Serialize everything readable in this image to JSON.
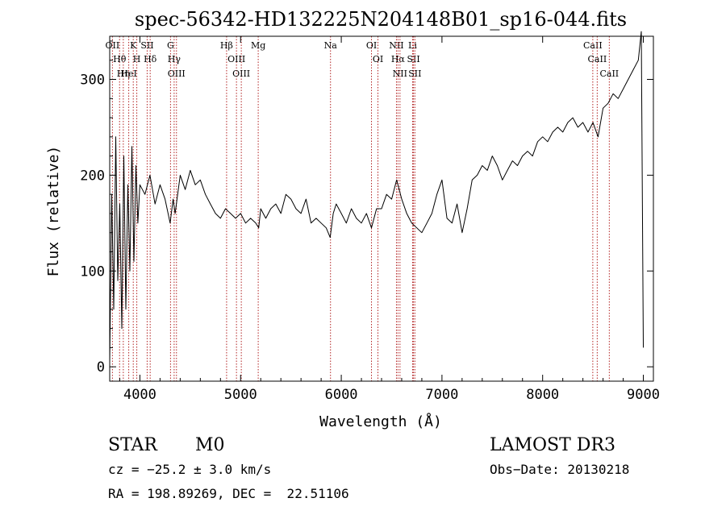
{
  "chart_data": {
    "type": "line",
    "title": "spec-56342-HD132225N204148B01_sp16-044.fits",
    "xlabel": "Wavelength (Å)",
    "ylabel": "Flux (relative)",
    "xlim": [
      3700,
      9100
    ],
    "ylim": [
      -15,
      345
    ],
    "x_ticks": [
      4000,
      5000,
      6000,
      7000,
      8000,
      9000
    ],
    "x_tick_labels": [
      "4000",
      "5000",
      "6000",
      "7000",
      "8000",
      "9000"
    ],
    "y_ticks": [
      0,
      100,
      200,
      300
    ],
    "y_tick_labels": [
      "0",
      "100",
      "200",
      "300"
    ],
    "series": [
      {
        "name": "flux",
        "x": [
          3700,
          3720,
          3740,
          3760,
          3780,
          3800,
          3820,
          3840,
          3860,
          3880,
          3900,
          3920,
          3940,
          3960,
          3980,
          4000,
          4050,
          4100,
          4150,
          4200,
          4250,
          4300,
          4330,
          4350,
          4400,
          4450,
          4500,
          4550,
          4600,
          4650,
          4700,
          4750,
          4800,
          4850,
          4900,
          4950,
          5000,
          5050,
          5100,
          5150,
          5180,
          5200,
          5250,
          5300,
          5350,
          5400,
          5450,
          5500,
          5550,
          5600,
          5650,
          5700,
          5750,
          5800,
          5850,
          5890,
          5920,
          5950,
          6000,
          6050,
          6100,
          6150,
          6200,
          6250,
          6300,
          6350,
          6400,
          6450,
          6500,
          6550,
          6563,
          6600,
          6650,
          6700,
          6750,
          6800,
          6850,
          6900,
          6950,
          7000,
          7050,
          7100,
          7150,
          7200,
          7250,
          7300,
          7350,
          7400,
          7450,
          7500,
          7550,
          7600,
          7650,
          7700,
          7750,
          7800,
          7850,
          7900,
          7950,
          8000,
          8050,
          8100,
          8150,
          8200,
          8250,
          8300,
          8350,
          8400,
          8450,
          8500,
          8550,
          8600,
          8650,
          8700,
          8750,
          8800,
          8850,
          8900,
          8950,
          8980,
          9000
        ],
        "y": [
          5,
          180,
          60,
          240,
          90,
          170,
          40,
          220,
          60,
          190,
          100,
          230,
          110,
          210,
          150,
          190,
          180,
          200,
          170,
          190,
          175,
          150,
          175,
          160,
          200,
          185,
          205,
          190,
          195,
          180,
          170,
          160,
          155,
          165,
          160,
          155,
          160,
          150,
          155,
          150,
          145,
          165,
          155,
          165,
          170,
          160,
          180,
          175,
          165,
          160,
          175,
          150,
          155,
          150,
          145,
          135,
          160,
          170,
          160,
          150,
          165,
          155,
          150,
          160,
          145,
          165,
          165,
          180,
          175,
          195,
          190,
          175,
          160,
          150,
          145,
          140,
          150,
          160,
          180,
          195,
          155,
          150,
          170,
          140,
          165,
          195,
          200,
          210,
          205,
          220,
          210,
          195,
          205,
          215,
          210,
          220,
          225,
          220,
          235,
          240,
          235,
          245,
          250,
          245,
          255,
          260,
          250,
          255,
          245,
          255,
          240,
          270,
          275,
          285,
          280,
          290,
          300,
          310,
          320,
          350,
          20
        ]
      }
    ],
    "line_markers": [
      {
        "wavelength": 3727,
        "labels": [
          "OII"
        ]
      },
      {
        "wavelength": 3798,
        "labels": [
          "Hθ"
        ]
      },
      {
        "wavelength": 3835,
        "labels": [
          "Hη"
        ]
      },
      {
        "wavelength": 3889,
        "labels": [
          "HeI"
        ]
      },
      {
        "wavelength": 3934,
        "labels": [
          "K"
        ]
      },
      {
        "wavelength": 3969,
        "labels": [
          "H"
        ]
      },
      {
        "wavelength": 4072,
        "labels": [
          "SII"
        ]
      },
      {
        "wavelength": 4102,
        "labels": [
          "Hδ"
        ]
      },
      {
        "wavelength": 4304,
        "labels": [
          "G"
        ]
      },
      {
        "wavelength": 4340,
        "labels": [
          "Hγ"
        ]
      },
      {
        "wavelength": 4363,
        "labels": [
          "OIII"
        ]
      },
      {
        "wavelength": 4861,
        "labels": [
          "Hβ"
        ]
      },
      {
        "wavelength": 4959,
        "labels": [
          "OIII"
        ]
      },
      {
        "wavelength": 5007,
        "labels": [
          "OIII"
        ]
      },
      {
        "wavelength": 5175,
        "labels": [
          "Mg"
        ]
      },
      {
        "wavelength": 5893,
        "labels": [
          "Na"
        ]
      },
      {
        "wavelength": 6300,
        "labels": [
          "OI"
        ]
      },
      {
        "wavelength": 6364,
        "labels": [
          "OI"
        ]
      },
      {
        "wavelength": 6548,
        "labels": [
          "NII"
        ]
      },
      {
        "wavelength": 6563,
        "labels": [
          "Hα"
        ]
      },
      {
        "wavelength": 6583,
        "labels": [
          "NII"
        ]
      },
      {
        "wavelength": 6708,
        "labels": [
          "Li"
        ]
      },
      {
        "wavelength": 6717,
        "labels": [
          "SII"
        ]
      },
      {
        "wavelength": 6731,
        "labels": [
          "SII"
        ]
      },
      {
        "wavelength": 8498,
        "labels": [
          "CaII"
        ]
      },
      {
        "wavelength": 8542,
        "labels": [
          "CaII"
        ]
      },
      {
        "wavelength": 8662,
        "labels": [
          "CaII"
        ]
      }
    ],
    "line_marker_color": "#b22222",
    "spectrum_color": "#000000"
  },
  "info": {
    "object_class": "STAR",
    "subclass": "M0",
    "survey": "LAMOST DR3",
    "cz": "cz = −25.2 ± 3.0 km/s",
    "obs_date": "Obs−Date: 20130218",
    "coords": "RA = 198.89269, DEC =  22.51106"
  }
}
